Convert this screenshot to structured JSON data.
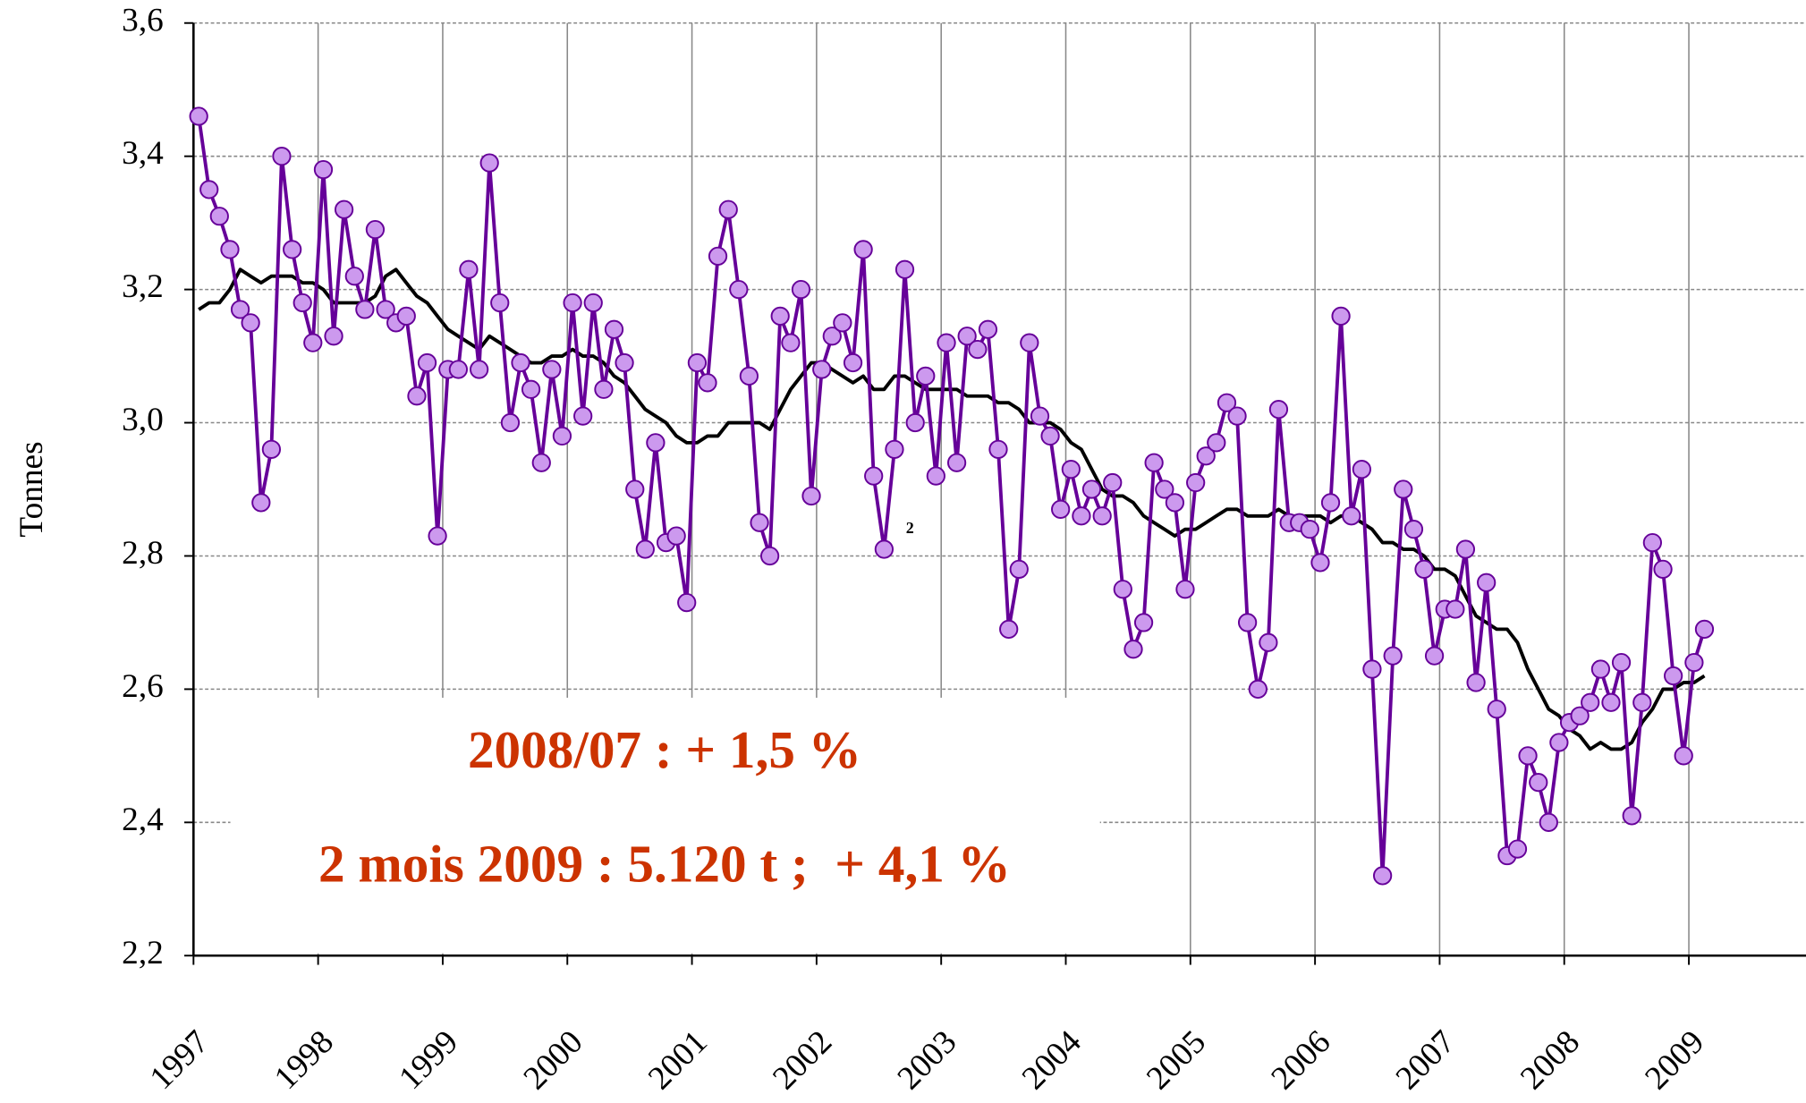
{
  "chart_data": {
    "type": "line",
    "ylabel": "Tonnes",
    "xlim": [
      1997,
      2009.94
    ],
    "ylim": [
      2.2,
      3.6
    ],
    "xticks": [
      1997,
      1998,
      1999,
      2000,
      2001,
      2002,
      2003,
      2004,
      2005,
      2006,
      2007,
      2008,
      2009
    ],
    "yticks": [
      {
        "value": 2.2,
        "label": "2,2"
      },
      {
        "value": 2.4,
        "label": "2,4"
      },
      {
        "value": 2.6,
        "label": "2,6"
      },
      {
        "value": 2.8,
        "label": "2,8"
      },
      {
        "value": 3.0,
        "label": "3,0"
      },
      {
        "value": 3.2,
        "label": "3,2"
      },
      {
        "value": 3.4,
        "label": "3,4"
      },
      {
        "value": 3.6,
        "label": "3,6"
      }
    ],
    "grid": true,
    "x": [
      1997.042,
      1997.125,
      1997.208,
      1997.292,
      1997.375,
      1997.458,
      1997.542,
      1997.625,
      1997.708,
      1997.792,
      1997.875,
      1997.958,
      1998.042,
      1998.125,
      1998.208,
      1998.292,
      1998.375,
      1998.458,
      1998.542,
      1998.625,
      1998.708,
      1998.792,
      1998.875,
      1998.958,
      1999.042,
      1999.125,
      1999.208,
      1999.292,
      1999.375,
      1999.458,
      1999.542,
      1999.625,
      1999.708,
      1999.792,
      1999.875,
      1999.958,
      2000.042,
      2000.125,
      2000.208,
      2000.292,
      2000.375,
      2000.458,
      2000.542,
      2000.625,
      2000.708,
      2000.792,
      2000.875,
      2000.958,
      2001.042,
      2001.125,
      2001.208,
      2001.292,
      2001.375,
      2001.458,
      2001.542,
      2001.625,
      2001.708,
      2001.792,
      2001.875,
      2001.958,
      2002.042,
      2002.125,
      2002.208,
      2002.292,
      2002.375,
      2002.458,
      2002.542,
      2002.625,
      2002.708,
      2002.792,
      2002.875,
      2002.958,
      2003.042,
      2003.125,
      2003.208,
      2003.292,
      2003.375,
      2003.458,
      2003.542,
      2003.625,
      2003.708,
      2003.792,
      2003.875,
      2003.958,
      2004.042,
      2004.125,
      2004.208,
      2004.292,
      2004.375,
      2004.458,
      2004.542,
      2004.625,
      2004.708,
      2004.792,
      2004.875,
      2004.958,
      2005.042,
      2005.125,
      2005.208,
      2005.292,
      2005.375,
      2005.458,
      2005.542,
      2005.625,
      2005.708,
      2005.792,
      2005.875,
      2005.958,
      2006.042,
      2006.125,
      2006.208,
      2006.292,
      2006.375,
      2006.458,
      2006.542,
      2006.625,
      2006.708,
      2006.792,
      2006.875,
      2006.958,
      2007.042,
      2007.125,
      2007.208,
      2007.292,
      2007.375,
      2007.458,
      2007.542,
      2007.625,
      2007.708,
      2007.792,
      2007.875,
      2007.958,
      2008.042,
      2008.125,
      2008.208,
      2008.292,
      2008.375,
      2008.458,
      2008.542,
      2008.625,
      2008.708,
      2008.792,
      2008.875,
      2008.958,
      2009.042,
      2009.125
    ],
    "series": [
      {
        "color": "#660099",
        "marker_color": "#cc99ee",
        "markers": true,
        "values": [
          3.46,
          3.35,
          3.31,
          3.26,
          3.17,
          3.15,
          2.88,
          2.96,
          3.4,
          3.26,
          3.18,
          3.12,
          3.38,
          3.13,
          3.32,
          3.22,
          3.17,
          3.29,
          3.17,
          3.15,
          3.16,
          3.04,
          3.09,
          2.83,
          3.08,
          3.08,
          3.23,
          3.08,
          3.39,
          3.18,
          3.0,
          3.09,
          3.05,
          2.94,
          3.08,
          2.98,
          3.18,
          3.01,
          3.18,
          3.05,
          3.14,
          3.09,
          2.9,
          2.81,
          2.97,
          2.82,
          2.83,
          2.73,
          3.09,
          3.06,
          3.25,
          3.32,
          3.2,
          3.07,
          2.85,
          2.8,
          3.16,
          3.12,
          3.2,
          2.89,
          3.08,
          3.13,
          3.15,
          3.09,
          3.26,
          2.92,
          2.81,
          2.96,
          3.23,
          3.0,
          3.07,
          2.92,
          3.12,
          2.94,
          3.13,
          3.11,
          3.14,
          2.96,
          2.69,
          2.78,
          3.12,
          3.01,
          2.98,
          2.87,
          2.93,
          2.86,
          2.9,
          2.86,
          2.91,
          2.75,
          2.66,
          2.7,
          2.94,
          2.9,
          2.88,
          2.75,
          2.91,
          2.95,
          2.97,
          3.03,
          3.01,
          2.7,
          2.6,
          2.67,
          3.02,
          2.85,
          2.85,
          2.84,
          2.79,
          2.88,
          3.16,
          2.86,
          2.93,
          2.63,
          2.32,
          2.65,
          2.9,
          2.84,
          2.78,
          2.65,
          2.72,
          2.72,
          2.81,
          2.61,
          2.76,
          2.57,
          2.35,
          2.36,
          2.5,
          2.46,
          2.4,
          2.52,
          2.55,
          2.56,
          2.58,
          2.63,
          2.58,
          2.64,
          2.41,
          2.58,
          2.82,
          2.78,
          2.62,
          2.5,
          2.64,
          2.69
        ]
      },
      {
        "color": "#000000",
        "markers": false,
        "values": [
          3.17,
          3.18,
          3.18,
          3.2,
          3.23,
          3.22,
          3.21,
          3.22,
          3.22,
          3.22,
          3.21,
          3.21,
          3.2,
          3.18,
          3.18,
          3.18,
          3.18,
          3.19,
          3.22,
          3.23,
          3.21,
          3.19,
          3.18,
          3.16,
          3.14,
          3.13,
          3.12,
          3.11,
          3.13,
          3.12,
          3.11,
          3.1,
          3.09,
          3.09,
          3.1,
          3.1,
          3.11,
          3.1,
          3.1,
          3.09,
          3.07,
          3.06,
          3.04,
          3.02,
          3.01,
          3.0,
          2.98,
          2.97,
          2.97,
          2.98,
          2.98,
          3.0,
          3.0,
          3.0,
          3.0,
          2.99,
          3.02,
          3.05,
          3.07,
          3.09,
          3.09,
          3.08,
          3.07,
          3.06,
          3.07,
          3.05,
          3.05,
          3.07,
          3.07,
          3.06,
          3.05,
          3.05,
          3.05,
          3.05,
          3.04,
          3.04,
          3.04,
          3.03,
          3.03,
          3.02,
          3.0,
          3.0,
          3.0,
          2.99,
          2.97,
          2.96,
          2.93,
          2.9,
          2.89,
          2.89,
          2.88,
          2.86,
          2.85,
          2.84,
          2.83,
          2.84,
          2.84,
          2.85,
          2.86,
          2.87,
          2.87,
          2.86,
          2.86,
          2.86,
          2.87,
          2.86,
          2.86,
          2.86,
          2.86,
          2.85,
          2.86,
          2.86,
          2.85,
          2.84,
          2.82,
          2.82,
          2.81,
          2.81,
          2.8,
          2.78,
          2.78,
          2.77,
          2.74,
          2.71,
          2.7,
          2.69,
          2.69,
          2.67,
          2.63,
          2.6,
          2.57,
          2.56,
          2.54,
          2.53,
          2.51,
          2.52,
          2.51,
          2.51,
          2.52,
          2.55,
          2.57,
          2.6,
          2.6,
          2.61,
          2.61,
          2.62
        ]
      }
    ],
    "annotations": [
      "2008/07 : + 1,5 %",
      "2 mois 2009 : 5.120 t ;  + 4,1 %",
      "2"
    ]
  }
}
